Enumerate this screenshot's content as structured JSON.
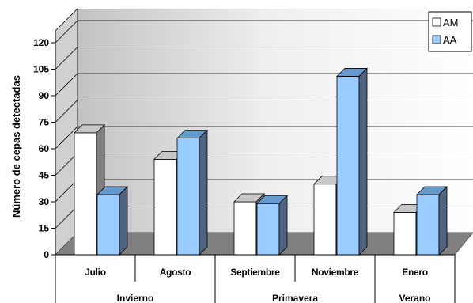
{
  "chart_data": {
    "type": "bar",
    "ylabel": "Número de cepas detectadas",
    "ylim": [
      0,
      120
    ],
    "yticks": [
      0,
      15,
      30,
      45,
      60,
      75,
      90,
      105,
      120
    ],
    "grid": true,
    "legend_position": "top-right",
    "categories": [
      "Julio",
      "Agosto",
      "Septiembre",
      "Noviembre",
      "Enero"
    ],
    "groups": [
      {
        "label": "Invierno",
        "categories": [
          "Julio",
          "Agosto"
        ]
      },
      {
        "label": "Primavera",
        "categories": [
          "Septiembre",
          "Noviembre"
        ]
      },
      {
        "label": "Verano",
        "categories": [
          "Enero"
        ]
      }
    ],
    "series": [
      {
        "name": "AM",
        "values": [
          69,
          54,
          30,
          40,
          24
        ],
        "color": "#ffffff"
      },
      {
        "name": "AA",
        "values": [
          34,
          66,
          29,
          101,
          34
        ],
        "color": "#99ccff"
      }
    ]
  }
}
